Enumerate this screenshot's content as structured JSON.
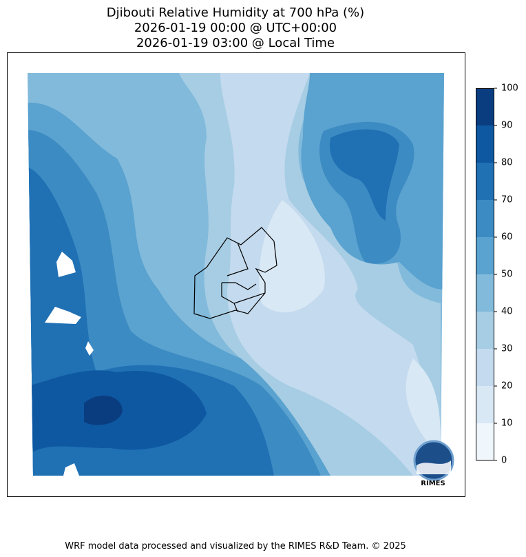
{
  "title": [
    "Djibouti Relative Humidity at 700 hPa (%)",
    "2026-01-19 00:00 @ UTC+00:00",
    "2026-01-19 03:00 @ Local Time"
  ],
  "colorbar": {
    "ticks": [
      0,
      10,
      20,
      30,
      40,
      50,
      60,
      70,
      80,
      90,
      100
    ],
    "colors": [
      "#eff6fc",
      "#d9e8f5",
      "#c4daee",
      "#a6cde3",
      "#82badb",
      "#5aa2cf",
      "#3c8bc3",
      "#2070b4",
      "#0e58a2",
      "#0a3d7f"
    ]
  },
  "logo": "RIMES",
  "footer": "WRF model data processed and visualized by the RIMES R&D Team. © 2025"
}
